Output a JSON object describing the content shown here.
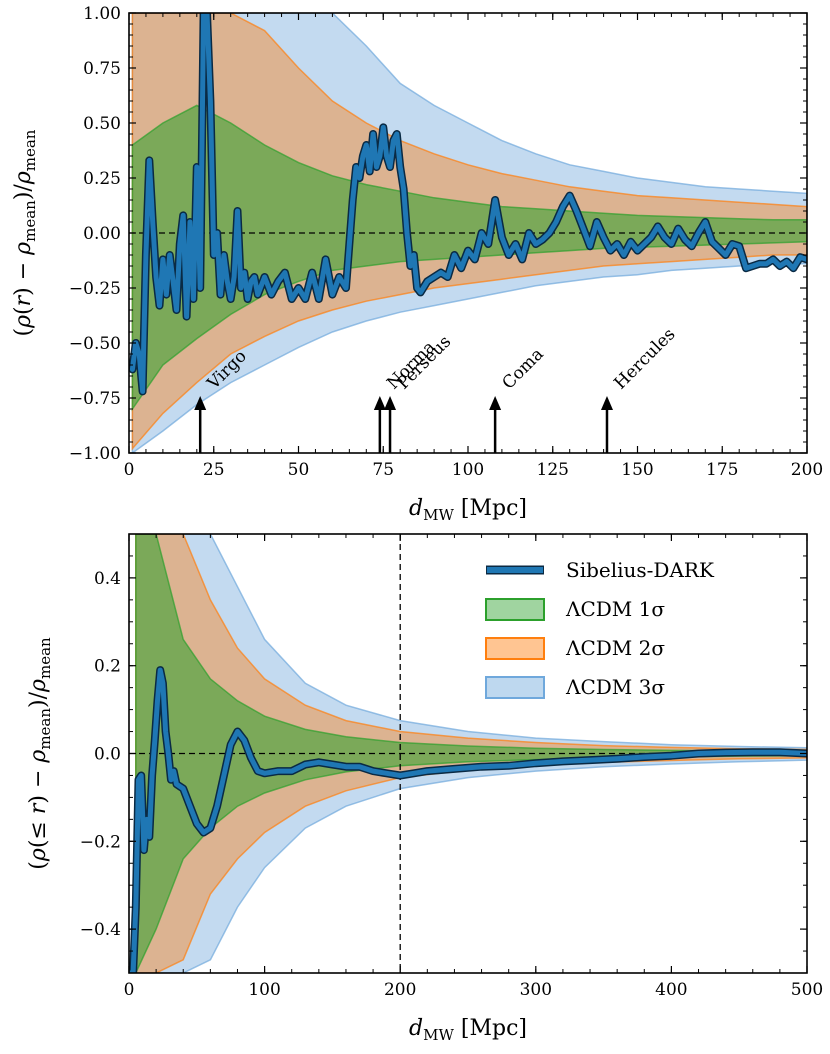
{
  "colors": {
    "sibelius": "#1f77b4",
    "sibelius_edge": "#0a2a44",
    "sigma1": "#2ca02c",
    "sigma2": "#ff7f0e",
    "sigma3": "#6fa8dc"
  },
  "chart_data": [
    {
      "type": "area",
      "xlabel": "d_MW [Mpc]",
      "ylabel": "(ρ(r) − ρ_mean)/ρ_mean",
      "xlim": [
        0,
        200
      ],
      "ylim": [
        -1.0,
        1.0
      ],
      "xticks": [
        "0",
        "25",
        "50",
        "75",
        "100",
        "125",
        "150",
        "175",
        "200"
      ],
      "yticks": [
        "−1.00",
        "−0.75",
        "−0.50",
        "−0.25",
        "0.00",
        "0.25",
        "0.50",
        "0.75",
        "1.00"
      ],
      "reference_line_y": 0.0,
      "bands": [
        {
          "level": 3,
          "x": [
            1,
            10,
            20,
            30,
            40,
            50,
            60,
            70,
            80,
            90,
            100,
            110,
            120,
            130,
            140,
            150,
            160,
            170,
            180,
            190,
            200
          ],
          "upper": [
            1.0,
            1.0,
            1.0,
            1.0,
            1.0,
            1.0,
            1.0,
            0.85,
            0.68,
            0.58,
            0.5,
            0.42,
            0.36,
            0.31,
            0.28,
            0.25,
            0.23,
            0.21,
            0.2,
            0.19,
            0.18
          ],
          "lower": [
            -1.0,
            -0.9,
            -0.78,
            -0.68,
            -0.6,
            -0.52,
            -0.45,
            -0.4,
            -0.36,
            -0.33,
            -0.3,
            -0.27,
            -0.24,
            -0.22,
            -0.2,
            -0.19,
            -0.17,
            -0.16,
            -0.15,
            -0.14,
            -0.14
          ]
        },
        {
          "level": 2,
          "x": [
            1,
            10,
            20,
            30,
            40,
            50,
            60,
            70,
            80,
            90,
            100,
            110,
            120,
            130,
            140,
            150,
            160,
            170,
            180,
            190,
            200
          ],
          "upper": [
            1.0,
            1.0,
            1.0,
            1.0,
            0.92,
            0.75,
            0.6,
            0.5,
            0.42,
            0.36,
            0.31,
            0.27,
            0.24,
            0.21,
            0.19,
            0.17,
            0.16,
            0.15,
            0.14,
            0.13,
            0.12
          ],
          "lower": [
            -0.98,
            -0.82,
            -0.68,
            -0.55,
            -0.47,
            -0.4,
            -0.35,
            -0.31,
            -0.28,
            -0.25,
            -0.23,
            -0.21,
            -0.19,
            -0.17,
            -0.15,
            -0.14,
            -0.13,
            -0.12,
            -0.11,
            -0.1,
            -0.1
          ]
        },
        {
          "level": 1,
          "x": [
            1,
            10,
            20,
            30,
            40,
            50,
            60,
            70,
            80,
            90,
            100,
            110,
            120,
            130,
            140,
            150,
            160,
            170,
            180,
            190,
            200
          ],
          "upper": [
            0.4,
            0.5,
            0.58,
            0.5,
            0.4,
            0.32,
            0.26,
            0.22,
            0.19,
            0.16,
            0.14,
            0.12,
            0.11,
            0.1,
            0.09,
            0.08,
            0.075,
            0.07,
            0.065,
            0.06,
            0.06
          ],
          "lower": [
            -0.8,
            -0.6,
            -0.48,
            -0.37,
            -0.28,
            -0.22,
            -0.17,
            -0.15,
            -0.13,
            -0.12,
            -0.11,
            -0.1,
            -0.09,
            -0.08,
            -0.07,
            -0.065,
            -0.06,
            -0.055,
            -0.05,
            -0.045,
            -0.04
          ]
        }
      ],
      "series": [
        {
          "name": "Sibelius-DARK",
          "x": [
            1,
            2,
            3,
            4,
            5,
            6,
            7,
            8,
            9,
            10,
            11,
            12,
            13,
            14,
            15,
            16,
            17,
            18,
            19,
            20,
            21,
            22,
            23,
            24,
            25,
            26,
            27,
            28,
            29,
            30,
            31,
            32,
            33,
            34,
            35,
            36,
            37,
            38,
            39,
            40,
            42,
            44,
            46,
            48,
            50,
            52,
            54,
            56,
            58,
            60,
            62,
            64,
            66,
            67,
            68,
            69,
            70,
            71,
            72,
            73,
            74,
            75,
            76,
            77,
            78,
            79,
            80,
            81,
            82,
            83,
            84,
            85,
            86,
            88,
            90,
            92,
            94,
            96,
            98,
            100,
            102,
            104,
            106,
            108,
            110,
            112,
            114,
            116,
            118,
            120,
            122,
            124,
            126,
            128,
            130,
            132,
            134,
            136,
            138,
            140,
            142,
            144,
            146,
            148,
            150,
            152,
            154,
            156,
            158,
            160,
            162,
            164,
            166,
            168,
            170,
            172,
            174,
            176,
            178,
            180,
            182,
            184,
            186,
            188,
            190,
            192,
            194,
            196,
            198,
            200
          ],
          "y": [
            -0.62,
            -0.5,
            -0.55,
            -0.72,
            -0.1,
            0.33,
            0.05,
            -0.2,
            -0.33,
            -0.12,
            -0.28,
            -0.1,
            -0.22,
            -0.35,
            -0.05,
            0.08,
            -0.38,
            0.05,
            -0.3,
            0.3,
            -0.25,
            1.0,
            1.0,
            0.6,
            -0.1,
            0.0,
            -0.28,
            -0.1,
            -0.22,
            -0.3,
            -0.2,
            0.1,
            -0.25,
            -0.18,
            -0.3,
            -0.22,
            -0.2,
            -0.28,
            -0.24,
            -0.2,
            -0.28,
            -0.22,
            -0.18,
            -0.3,
            -0.25,
            -0.3,
            -0.18,
            -0.3,
            -0.12,
            -0.28,
            -0.2,
            -0.25,
            0.15,
            0.3,
            0.25,
            0.35,
            0.4,
            0.28,
            0.45,
            0.3,
            0.35,
            0.48,
            0.35,
            0.3,
            0.42,
            0.45,
            0.3,
            0.2,
            0.0,
            -0.15,
            -0.1,
            -0.25,
            -0.27,
            -0.22,
            -0.2,
            -0.18,
            -0.2,
            -0.1,
            -0.16,
            -0.08,
            -0.12,
            0.0,
            -0.05,
            0.15,
            -0.02,
            -0.1,
            -0.05,
            -0.12,
            0.0,
            -0.05,
            -0.03,
            0.0,
            0.05,
            0.12,
            0.17,
            0.1,
            0.02,
            -0.06,
            0.05,
            -0.02,
            -0.08,
            -0.05,
            -0.1,
            -0.04,
            -0.08,
            -0.05,
            -0.02,
            0.03,
            -0.02,
            -0.05,
            0.02,
            -0.03,
            -0.06,
            0.0,
            0.05,
            -0.04,
            -0.07,
            -0.1,
            -0.05,
            -0.06,
            -0.16,
            -0.15,
            -0.14,
            -0.14,
            -0.12,
            -0.15,
            -0.13,
            -0.16,
            -0.11,
            -0.12
          ]
        }
      ],
      "annotations": [
        {
          "label": "Virgo",
          "x": 21
        },
        {
          "label": "Norma",
          "x": 74
        },
        {
          "label": "Perseus",
          "x": 77
        },
        {
          "label": "Coma",
          "x": 108
        },
        {
          "label": "Hercules",
          "x": 141
        }
      ],
      "annotation_arrow_y": [
        -1.0,
        -0.75
      ]
    },
    {
      "type": "area",
      "xlabel": "d_MW [Mpc]",
      "ylabel": "(ρ(≤ r) − ρ_mean)/ρ_mean",
      "xlim": [
        0,
        500
      ],
      "ylim": [
        -0.5,
        0.5
      ],
      "xticks": [
        "0",
        "100",
        "200",
        "300",
        "400",
        "500"
      ],
      "yticks": [
        "−0.4",
        "−0.2",
        "0.0",
        "0.2",
        "0.4"
      ],
      "reference_line_y": 0.0,
      "reference_line_x": 200,
      "bands": [
        {
          "level": 3,
          "x": [
            5,
            20,
            40,
            60,
            80,
            100,
            130,
            160,
            200,
            250,
            300,
            350,
            400,
            450,
            500
          ],
          "upper": [
            0.5,
            0.5,
            0.5,
            0.5,
            0.38,
            0.26,
            0.16,
            0.11,
            0.075,
            0.05,
            0.035,
            0.027,
            0.02,
            0.016,
            0.013
          ],
          "lower": [
            -0.5,
            -0.5,
            -0.5,
            -0.47,
            -0.35,
            -0.26,
            -0.17,
            -0.12,
            -0.08,
            -0.055,
            -0.04,
            -0.03,
            -0.024,
            -0.019,
            -0.015
          ]
        },
        {
          "level": 2,
          "x": [
            5,
            20,
            40,
            60,
            80,
            100,
            130,
            160,
            200,
            250,
            300,
            350,
            400,
            450,
            500
          ],
          "upper": [
            0.5,
            0.5,
            0.5,
            0.35,
            0.24,
            0.17,
            0.11,
            0.075,
            0.05,
            0.035,
            0.025,
            0.018,
            0.014,
            0.011,
            0.009
          ],
          "lower": [
            -0.5,
            -0.5,
            -0.47,
            -0.32,
            -0.24,
            -0.18,
            -0.12,
            -0.085,
            -0.055,
            -0.038,
            -0.027,
            -0.02,
            -0.016,
            -0.012,
            -0.01
          ]
        },
        {
          "level": 1,
          "x": [
            5,
            20,
            40,
            60,
            80,
            100,
            130,
            160,
            200,
            250,
            300,
            350,
            400,
            450,
            500
          ],
          "upper": [
            0.5,
            0.5,
            0.26,
            0.17,
            0.12,
            0.085,
            0.055,
            0.038,
            0.025,
            0.017,
            0.012,
            0.009,
            0.007,
            0.006,
            0.005
          ],
          "lower": [
            -0.5,
            -0.4,
            -0.24,
            -0.17,
            -0.12,
            -0.09,
            -0.06,
            -0.042,
            -0.028,
            -0.019,
            -0.014,
            -0.01,
            -0.008,
            -0.006,
            -0.005
          ]
        }
      ],
      "series": [
        {
          "name": "Sibelius-DARK",
          "x": [
            0,
            3,
            5,
            7,
            9,
            11,
            13,
            15,
            17,
            19,
            21,
            23,
            25,
            27,
            29,
            31,
            33,
            35,
            40,
            45,
            50,
            55,
            60,
            65,
            70,
            75,
            80,
            85,
            90,
            95,
            100,
            110,
            120,
            130,
            140,
            150,
            160,
            170,
            180,
            190,
            200,
            210,
            220,
            240,
            260,
            280,
            300,
            320,
            340,
            360,
            380,
            400,
            420,
            440,
            460,
            480,
            500
          ],
          "y": [
            -0.5,
            -0.5,
            -0.35,
            -0.06,
            -0.05,
            -0.22,
            -0.15,
            -0.19,
            -0.05,
            0.03,
            0.12,
            0.19,
            0.16,
            0.05,
            0.0,
            -0.06,
            -0.04,
            -0.07,
            -0.08,
            -0.12,
            -0.16,
            -0.18,
            -0.17,
            -0.12,
            -0.05,
            0.02,
            0.05,
            0.03,
            -0.01,
            -0.04,
            -0.045,
            -0.04,
            -0.04,
            -0.025,
            -0.02,
            -0.025,
            -0.03,
            -0.03,
            -0.04,
            -0.045,
            -0.05,
            -0.045,
            -0.04,
            -0.035,
            -0.03,
            -0.028,
            -0.022,
            -0.018,
            -0.015,
            -0.012,
            -0.008,
            -0.005,
            0.0,
            0.002,
            0.003,
            0.003,
            0.0
          ]
        }
      ],
      "legend": {
        "placement": "top-right",
        "entries": [
          "Sibelius-DARK",
          "ΛCDM 1σ",
          "ΛCDM 2σ",
          "ΛCDM 3σ"
        ]
      }
    }
  ]
}
